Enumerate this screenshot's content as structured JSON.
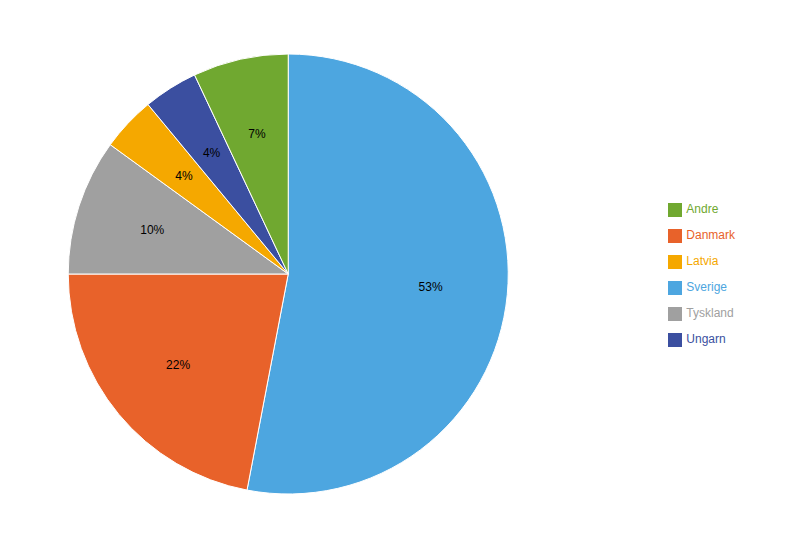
{
  "chart_data": {
    "type": "pie",
    "categories": [
      "Sverige",
      "Danmark",
      "Tyskland",
      "Latvia",
      "Ungarn",
      "Andre"
    ],
    "values": [
      53,
      22,
      10,
      4,
      4,
      7
    ],
    "value_labels": [
      "53%",
      "22%",
      "10%",
      "4%",
      "4%",
      "7%"
    ],
    "colors": [
      "#4DA6E0",
      "#E8622A",
      "#A0A0A0",
      "#F5A800",
      "#3B4FA0",
      "#70A830"
    ],
    "data_labels": true,
    "legend": "right"
  }
}
